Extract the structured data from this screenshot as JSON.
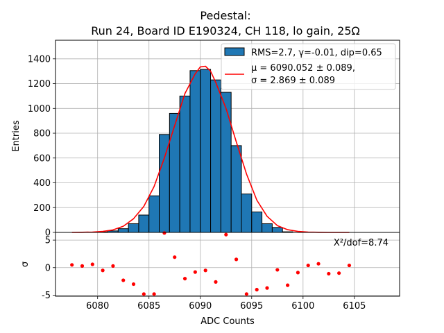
{
  "chart_data": {
    "title": "Pedestal:",
    "subtitle": "Run 24, Board ID E190324, CH 118, lo gain, 25Ω",
    "xlabel": "ADC Counts",
    "grid": true,
    "legend": {
      "placement": "top-right",
      "hist_label": "RMS=2.7, γ=-0.01, dip=0.65",
      "fit_label_1": "μ = 6090.052 ± 0.089,",
      "fit_label_2": "σ = 2.869 ± 0.089"
    },
    "colors": {
      "bar": "#1f77b4",
      "fit": "#ff0000",
      "residual": "#ff0000"
    },
    "panels": [
      {
        "type": "bar",
        "ylabel": "Entries",
        "xlim": [
          6075.9,
          6109.4
        ],
        "ylim": [
          0,
          1550
        ],
        "yticks": [
          0,
          200,
          400,
          600,
          800,
          1000,
          1200,
          1400
        ],
        "bin_width": 1,
        "bars": [
          {
            "x": 6079.5,
            "y": 2
          },
          {
            "x": 6080.5,
            "y": 4
          },
          {
            "x": 6081.5,
            "y": 12
          },
          {
            "x": 6082.5,
            "y": 30
          },
          {
            "x": 6083.5,
            "y": 70
          },
          {
            "x": 6084.5,
            "y": 140
          },
          {
            "x": 6085.5,
            "y": 295
          },
          {
            "x": 6086.5,
            "y": 790
          },
          {
            "x": 6087.5,
            "y": 960
          },
          {
            "x": 6088.5,
            "y": 1100
          },
          {
            "x": 6089.5,
            "y": 1305
          },
          {
            "x": 6090.5,
            "y": 1315
          },
          {
            "x": 6091.5,
            "y": 1230
          },
          {
            "x": 6092.5,
            "y": 1130
          },
          {
            "x": 6093.5,
            "y": 700
          },
          {
            "x": 6094.5,
            "y": 310
          },
          {
            "x": 6095.5,
            "y": 165
          },
          {
            "x": 6096.5,
            "y": 70
          },
          {
            "x": 6097.5,
            "y": 40
          },
          {
            "x": 6098.5,
            "y": 5
          }
        ],
        "fit_curve": [
          {
            "x": 6077.5,
            "y": 0
          },
          {
            "x": 6078.5,
            "y": 1
          },
          {
            "x": 6079.5,
            "y": 3
          },
          {
            "x": 6080.5,
            "y": 8
          },
          {
            "x": 6081.5,
            "y": 20
          },
          {
            "x": 6082.5,
            "y": 50
          },
          {
            "x": 6083.5,
            "y": 110
          },
          {
            "x": 6084.5,
            "y": 210
          },
          {
            "x": 6085.5,
            "y": 370
          },
          {
            "x": 6086.5,
            "y": 600
          },
          {
            "x": 6087.5,
            "y": 860
          },
          {
            "x": 6088.5,
            "y": 1120
          },
          {
            "x": 6089.5,
            "y": 1280
          },
          {
            "x": 6090.0,
            "y": 1335
          },
          {
            "x": 6090.5,
            "y": 1340
          },
          {
            "x": 6091.0,
            "y": 1300
          },
          {
            "x": 6091.5,
            "y": 1210
          },
          {
            "x": 6092.5,
            "y": 1000
          },
          {
            "x": 6093.5,
            "y": 730
          },
          {
            "x": 6094.5,
            "y": 470
          },
          {
            "x": 6095.5,
            "y": 260
          },
          {
            "x": 6096.5,
            "y": 130
          },
          {
            "x": 6097.5,
            "y": 55
          },
          {
            "x": 6098.5,
            "y": 22
          },
          {
            "x": 6099.5,
            "y": 8
          },
          {
            "x": 6100.5,
            "y": 3
          },
          {
            "x": 6101.5,
            "y": 1
          },
          {
            "x": 6102.5,
            "y": 0
          },
          {
            "x": 6103.5,
            "y": 0
          },
          {
            "x": 6104.5,
            "y": 0
          }
        ]
      },
      {
        "type": "scatter",
        "ylabel": "σ",
        "xlim": [
          6075.9,
          6109.4
        ],
        "ylim": [
          -5.2,
          6.4
        ],
        "yticks": [
          -5,
          0,
          5
        ],
        "xticks": [
          6080,
          6085,
          6090,
          6095,
          6100,
          6105
        ],
        "annotation": "X²/dof=8.74",
        "points": [
          {
            "x": 6077.5,
            "y": 0.5
          },
          {
            "x": 6078.5,
            "y": 0.3
          },
          {
            "x": 6079.5,
            "y": 0.6
          },
          {
            "x": 6080.5,
            "y": -0.5
          },
          {
            "x": 6081.5,
            "y": 0.3
          },
          {
            "x": 6082.5,
            "y": -2.3
          },
          {
            "x": 6083.5,
            "y": -3.0
          },
          {
            "x": 6084.5,
            "y": -4.8
          },
          {
            "x": 6085.5,
            "y": -4.8
          },
          {
            "x": 6086.5,
            "y": 6.3
          },
          {
            "x": 6087.5,
            "y": 1.9
          },
          {
            "x": 6088.5,
            "y": -2.0
          },
          {
            "x": 6089.5,
            "y": -0.8
          },
          {
            "x": 6090.5,
            "y": -0.5
          },
          {
            "x": 6091.5,
            "y": -2.6
          },
          {
            "x": 6092.5,
            "y": 6.0
          },
          {
            "x": 6093.5,
            "y": 1.5
          },
          {
            "x": 6094.5,
            "y": -4.8
          },
          {
            "x": 6095.5,
            "y": -4.0
          },
          {
            "x": 6096.5,
            "y": -3.7
          },
          {
            "x": 6097.5,
            "y": -0.4
          },
          {
            "x": 6098.5,
            "y": -3.2
          },
          {
            "x": 6099.5,
            "y": -0.9
          },
          {
            "x": 6100.5,
            "y": 0.4
          },
          {
            "x": 6101.5,
            "y": 0.7
          },
          {
            "x": 6102.5,
            "y": -1.1
          },
          {
            "x": 6103.5,
            "y": -1.0
          },
          {
            "x": 6104.5,
            "y": 0.4
          }
        ]
      }
    ]
  }
}
